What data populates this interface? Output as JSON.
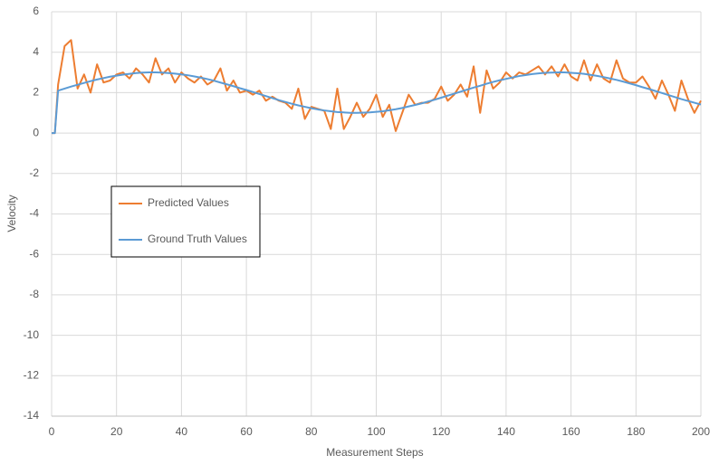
{
  "chart_data": {
    "type": "line",
    "xlabel": "Measurement Steps",
    "ylabel": "Velocity",
    "x": [
      0,
      1,
      2,
      4,
      6,
      8,
      10,
      12,
      14,
      16,
      18,
      20,
      22,
      24,
      26,
      28,
      30,
      32,
      34,
      36,
      38,
      40,
      42,
      44,
      46,
      48,
      50,
      52,
      54,
      56,
      58,
      60,
      62,
      64,
      66,
      68,
      70,
      72,
      74,
      76,
      78,
      80,
      82,
      84,
      86,
      88,
      90,
      92,
      94,
      96,
      98,
      100,
      102,
      104,
      106,
      108,
      110,
      112,
      114,
      116,
      118,
      120,
      122,
      124,
      126,
      128,
      130,
      132,
      134,
      136,
      138,
      140,
      142,
      144,
      146,
      148,
      150,
      152,
      154,
      156,
      158,
      160,
      162,
      164,
      166,
      168,
      170,
      172,
      174,
      176,
      178,
      180,
      182,
      184,
      186,
      188,
      190,
      192,
      194,
      196,
      198,
      200
    ],
    "series": [
      {
        "name": "Predicted Values",
        "color": "#ed7d31",
        "values": [
          0,
          0,
          2.4,
          4.3,
          4.6,
          2.2,
          2.9,
          2.0,
          3.4,
          2.5,
          2.6,
          2.9,
          3.0,
          2.7,
          3.2,
          2.9,
          2.5,
          3.7,
          2.9,
          3.2,
          2.5,
          3.0,
          2.7,
          2.5,
          2.8,
          2.4,
          2.6,
          3.2,
          2.1,
          2.6,
          2.0,
          2.1,
          1.9,
          2.1,
          1.6,
          1.8,
          1.6,
          1.5,
          1.2,
          2.2,
          0.7,
          1.3,
          1.2,
          1.1,
          0.2,
          2.2,
          0.2,
          0.8,
          1.5,
          0.8,
          1.2,
          1.9,
          0.8,
          1.4,
          0.1,
          1.0,
          1.9,
          1.4,
          1.5,
          1.5,
          1.7,
          2.3,
          1.6,
          1.9,
          2.4,
          1.8,
          3.3,
          1.0,
          3.1,
          2.2,
          2.5,
          3.0,
          2.7,
          3.0,
          2.9,
          3.1,
          3.3,
          2.9,
          3.3,
          2.8,
          3.4,
          2.8,
          2.6,
          3.6,
          2.6,
          3.4,
          2.7,
          2.5,
          3.6,
          2.7,
          2.5,
          2.5,
          2.8,
          2.3,
          1.7,
          2.6,
          1.9,
          1.1,
          2.6,
          1.7,
          1.0,
          1.6
        ]
      },
      {
        "name": "Ground Truth Values",
        "color": "#5b9bd5",
        "values": [
          0,
          0,
          2.1,
          2.2,
          2.3,
          2.39,
          2.48,
          2.57,
          2.65,
          2.72,
          2.79,
          2.84,
          2.89,
          2.93,
          2.97,
          2.99,
          3.0,
          3.0,
          2.99,
          2.97,
          2.94,
          2.9,
          2.86,
          2.8,
          2.74,
          2.67,
          2.59,
          2.5,
          2.41,
          2.32,
          2.22,
          2.13,
          2.03,
          1.93,
          1.83,
          1.73,
          1.63,
          1.54,
          1.45,
          1.37,
          1.3,
          1.23,
          1.17,
          1.12,
          1.08,
          1.04,
          1.02,
          1.0,
          1.0,
          1.01,
          1.02,
          1.05,
          1.08,
          1.13,
          1.18,
          1.24,
          1.32,
          1.39,
          1.47,
          1.56,
          1.65,
          1.75,
          1.85,
          1.95,
          2.05,
          2.15,
          2.25,
          2.34,
          2.44,
          2.53,
          2.61,
          2.68,
          2.75,
          2.82,
          2.87,
          2.92,
          2.95,
          2.98,
          2.99,
          3.0,
          3.0,
          2.98,
          2.96,
          2.93,
          2.88,
          2.83,
          2.77,
          2.7,
          2.63,
          2.55,
          2.46,
          2.37,
          2.27,
          2.18,
          2.08,
          1.98,
          1.88,
          1.78,
          1.68,
          1.59,
          1.5,
          1.41
        ]
      }
    ],
    "xlim": [
      0,
      200
    ],
    "xticks": [
      0,
      20,
      40,
      60,
      80,
      100,
      120,
      140,
      160,
      180,
      200
    ],
    "ylim": [
      -14,
      6
    ],
    "yticks": [
      -14,
      -12,
      -10,
      -8,
      -6,
      -4,
      -2,
      0,
      2,
      4,
      6
    ],
    "grid": true,
    "legend": "center-left"
  }
}
